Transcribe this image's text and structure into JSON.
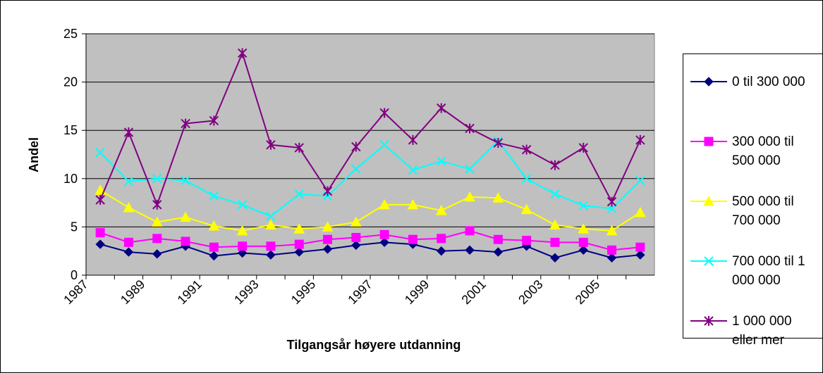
{
  "chart_data": {
    "type": "line",
    "xlabel": "Tilgangsår høyere utdanning",
    "ylabel": "Andel",
    "categories": [
      "1987",
      null,
      "1989",
      null,
      "1991",
      null,
      "1993",
      null,
      "1995",
      null,
      "1997",
      null,
      "1999",
      null,
      "2001",
      null,
      "2003",
      null,
      "2005",
      null
    ],
    "ylim": [
      0,
      25
    ],
    "yticks": [
      0,
      5,
      10,
      15,
      20,
      25
    ],
    "grid": true,
    "legend": "right",
    "series": [
      {
        "name": "0 til 300 000",
        "color": "#000080",
        "marker": "diamond",
        "values": [
          3.2,
          2.4,
          2.2,
          3.0,
          2.0,
          2.3,
          2.1,
          2.4,
          2.7,
          3.1,
          3.4,
          3.2,
          2.5,
          2.6,
          2.4,
          3.0,
          1.8,
          2.6,
          1.8,
          2.1
        ]
      },
      {
        "name": "300 000 til 500 000",
        "color": "#ff00ff",
        "marker": "square",
        "values": [
          4.4,
          3.4,
          3.8,
          3.5,
          2.9,
          3.0,
          3.0,
          3.2,
          3.7,
          3.9,
          4.2,
          3.7,
          3.8,
          4.6,
          3.7,
          3.6,
          3.4,
          3.4,
          2.6,
          2.9
        ]
      },
      {
        "name": "500 000 til 700 000",
        "color": "#ffff00",
        "marker": "triangle",
        "values": [
          8.8,
          7.0,
          5.5,
          6.0,
          5.1,
          4.6,
          5.2,
          4.8,
          5.0,
          5.5,
          7.3,
          7.3,
          6.7,
          8.1,
          8.0,
          6.8,
          5.2,
          4.8,
          4.6,
          6.5
        ]
      },
      {
        "name": "700 000 til 1 000 000",
        "color": "#00ffff",
        "marker": "x",
        "values": [
          12.7,
          9.7,
          10.0,
          9.8,
          8.2,
          7.3,
          6.1,
          8.4,
          8.2,
          11.0,
          13.5,
          10.9,
          11.8,
          11.0,
          13.9,
          10.0,
          8.4,
          7.2,
          6.9,
          9.8
        ]
      },
      {
        "name": "1 000 000 eller mer",
        "color": "#800080",
        "marker": "star",
        "values": [
          7.8,
          14.8,
          7.3,
          15.7,
          16.0,
          23.0,
          13.5,
          13.2,
          8.7,
          13.3,
          16.8,
          14.0,
          17.3,
          15.2,
          13.7,
          13.0,
          11.4,
          13.2,
          7.6,
          14.0
        ]
      }
    ]
  }
}
